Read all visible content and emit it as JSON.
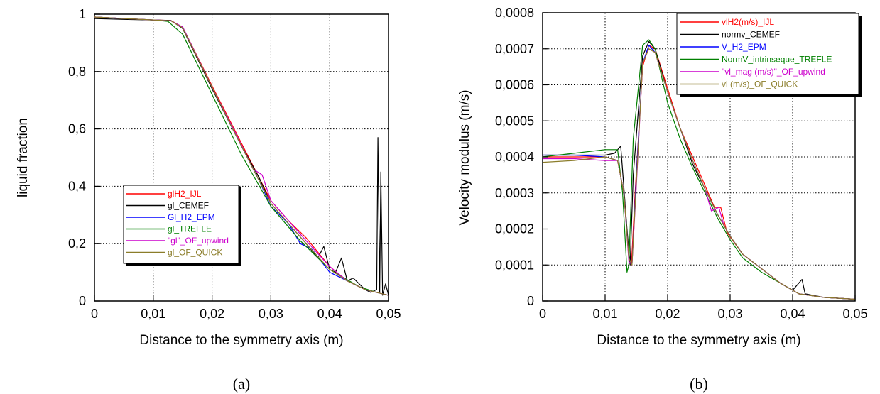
{
  "chart_data": [
    {
      "type": "line",
      "caption": "(a)",
      "xlabel": "Distance to the symmetry axis (m)",
      "ylabel": "liquid fraction",
      "xlim": [
        0,
        0.05
      ],
      "ylim": [
        0,
        1
      ],
      "x_ticks": [
        "0",
        "0,01",
        "0,02",
        "0,03",
        "0,04",
        "0,05"
      ],
      "y_ticks": [
        "0",
        "0,2",
        "0,4",
        "0,6",
        "0,8",
        "1"
      ],
      "grid": true,
      "legend_position": "center-left",
      "series": [
        {
          "name": "glH2_IJL",
          "color": "#ff0000",
          "x": [
            0,
            0.005,
            0.01,
            0.013,
            0.015,
            0.02,
            0.024,
            0.027,
            0.028,
            0.03,
            0.033,
            0.036,
            0.04,
            0.043,
            0.046,
            0.048,
            0.05
          ],
          "y": [
            0.99,
            0.985,
            0.98,
            0.978,
            0.955,
            0.75,
            0.59,
            0.47,
            0.43,
            0.35,
            0.28,
            0.22,
            0.12,
            0.07,
            0.04,
            0.03,
            0.02
          ]
        },
        {
          "name": "gl_CEMEF",
          "color": "#000000",
          "x": [
            0,
            0.005,
            0.01,
            0.013,
            0.015,
            0.02,
            0.024,
            0.028,
            0.03,
            0.033,
            0.036,
            0.038,
            0.039,
            0.04,
            0.041,
            0.042,
            0.043,
            0.044,
            0.046,
            0.047,
            0.048,
            0.0482,
            0.0485,
            0.0487,
            0.049,
            0.0495,
            0.05
          ],
          "y": [
            0.985,
            0.982,
            0.98,
            0.978,
            0.95,
            0.74,
            0.58,
            0.43,
            0.34,
            0.27,
            0.2,
            0.15,
            0.19,
            0.11,
            0.1,
            0.15,
            0.07,
            0.08,
            0.04,
            0.03,
            0.04,
            0.57,
            0.03,
            0.45,
            0.02,
            0.06,
            0.02
          ]
        },
        {
          "name": "Gl_H2_EPM",
          "color": "#0000ff",
          "x": [
            0,
            0.005,
            0.01,
            0.013,
            0.015,
            0.02,
            0.024,
            0.028,
            0.03,
            0.033,
            0.035,
            0.037,
            0.04,
            0.043,
            0.046,
            0.048,
            0.05
          ],
          "y": [
            0.99,
            0.985,
            0.98,
            0.977,
            0.955,
            0.745,
            0.58,
            0.42,
            0.33,
            0.27,
            0.2,
            0.18,
            0.1,
            0.07,
            0.04,
            0.03,
            0.02
          ]
        },
        {
          "name": "gl_TREFLE",
          "color": "#008000",
          "x": [
            0,
            0.005,
            0.01,
            0.0125,
            0.015,
            0.02,
            0.025,
            0.03,
            0.035,
            0.04,
            0.045,
            0.048,
            0.05
          ],
          "y": [
            0.99,
            0.985,
            0.98,
            0.975,
            0.93,
            0.72,
            0.51,
            0.33,
            0.21,
            0.11,
            0.05,
            0.03,
            0.02
          ]
        },
        {
          "name": "\"gl\"_OF_upwind",
          "color": "#cc00cc",
          "x": [
            0,
            0.005,
            0.01,
            0.013,
            0.015,
            0.02,
            0.024,
            0.027,
            0.0285,
            0.03,
            0.033,
            0.036,
            0.04,
            0.043,
            0.046,
            0.048,
            0.05
          ],
          "y": [
            0.99,
            0.985,
            0.98,
            0.977,
            0.955,
            0.745,
            0.585,
            0.46,
            0.44,
            0.35,
            0.28,
            0.21,
            0.12,
            0.07,
            0.04,
            0.03,
            0.02
          ]
        },
        {
          "name": "gl_OF_QUICK",
          "color": "#8b7d2a",
          "x": [
            0,
            0.005,
            0.01,
            0.013,
            0.015,
            0.02,
            0.024,
            0.028,
            0.03,
            0.033,
            0.036,
            0.04,
            0.043,
            0.046,
            0.048,
            0.05
          ],
          "y": [
            0.99,
            0.985,
            0.98,
            0.977,
            0.952,
            0.745,
            0.58,
            0.42,
            0.34,
            0.27,
            0.2,
            0.11,
            0.07,
            0.04,
            0.03,
            0.02
          ]
        }
      ]
    },
    {
      "type": "line",
      "caption": "(b)",
      "xlabel": "Distance to the symmetry axis (m)",
      "ylabel": "Velocity modulus (m/s)",
      "xlim": [
        0,
        0.05
      ],
      "ylim": [
        0,
        0.0008
      ],
      "x_ticks": [
        "0",
        "0,01",
        "0,02",
        "0,03",
        "0,04",
        "0,05"
      ],
      "y_ticks": [
        "0",
        "0,0001",
        "0,0002",
        "0,0003",
        "0,0004",
        "0,0005",
        "0,0006",
        "0,0007",
        "0,0008"
      ],
      "grid": true,
      "legend_position": "top-right",
      "series": [
        {
          "name": "vlH2(m/s)_IJL",
          "color": "#ff0000",
          "x": [
            0,
            0.005,
            0.01,
            0.012,
            0.013,
            0.0138,
            0.0142,
            0.0148,
            0.016,
            0.017,
            0.018,
            0.02,
            0.022,
            0.024,
            0.026,
            0.0275,
            0.0285,
            0.0295,
            0.032,
            0.035,
            0.038,
            0.041,
            0.045,
            0.05
          ],
          "y": [
            0.0004,
            0.0004,
            0.0004,
            0.00039,
            0.0003,
            0.00012,
            0.0001,
            0.0003,
            0.00065,
            0.00071,
            0.0007,
            0.00059,
            0.00048,
            0.0004,
            0.00032,
            0.00026,
            0.00026,
            0.00019,
            0.00013,
            9e-05,
            5e-05,
            2e-05,
            1e-05,
            5e-06
          ]
        },
        {
          "name": "normv_CEMEF",
          "color": "#000000",
          "x": [
            0,
            0.005,
            0.01,
            0.0115,
            0.0125,
            0.0135,
            0.014,
            0.0145,
            0.016,
            0.017,
            0.018,
            0.02,
            0.022,
            0.024,
            0.026,
            0.028,
            0.03,
            0.032,
            0.035,
            0.038,
            0.04,
            0.0415,
            0.042,
            0.045,
            0.05
          ],
          "y": [
            0.000405,
            0.000405,
            0.000405,
            0.00041,
            0.00043,
            0.0002,
            0.0001,
            0.00035,
            0.00068,
            0.00072,
            0.0007,
            0.00058,
            0.00048,
            0.00038,
            0.00031,
            0.00024,
            0.00018,
            0.00013,
            9e-05,
            5e-05,
            3e-05,
            6e-05,
            2e-05,
            1e-05,
            5e-06
          ]
        },
        {
          "name": "V_H2_EPM",
          "color": "#0000ff",
          "x": [
            0,
            0.005,
            0.01,
            0.012,
            0.013,
            0.0138,
            0.0143,
            0.015,
            0.016,
            0.017,
            0.018,
            0.02,
            0.022,
            0.024,
            0.026,
            0.028,
            0.03,
            0.032,
            0.035,
            0.038,
            0.041,
            0.045,
            0.05
          ],
          "y": [
            0.000405,
            0.000405,
            0.0004,
            0.00039,
            0.0003,
            0.00012,
            0.0001,
            0.00035,
            0.00066,
            0.00071,
            0.00069,
            0.00058,
            0.00048,
            0.00039,
            0.00031,
            0.00024,
            0.00018,
            0.00013,
            9e-05,
            5e-05,
            2e-05,
            1e-05,
            5e-06
          ]
        },
        {
          "name": "NormV_intrinseque_TREFLE",
          "color": "#008000",
          "x": [
            0,
            0.005,
            0.01,
            0.012,
            0.0128,
            0.0135,
            0.0138,
            0.0145,
            0.016,
            0.017,
            0.018,
            0.02,
            0.022,
            0.024,
            0.026,
            0.028,
            0.03,
            0.032,
            0.035,
            0.038,
            0.041,
            0.045,
            0.05
          ],
          "y": [
            0.0004,
            0.00041,
            0.00042,
            0.00042,
            0.0003,
            8e-05,
            0.0001,
            0.00045,
            0.00071,
            0.000725,
            0.0007,
            0.00055,
            0.00045,
            0.00037,
            0.0003,
            0.00023,
            0.00017,
            0.00012,
            8e-05,
            5e-05,
            2e-05,
            1e-05,
            5e-06
          ]
        },
        {
          "name": "\"vl_mag (m/s)\"_OF_upwind",
          "color": "#cc00cc",
          "x": [
            0,
            0.005,
            0.01,
            0.012,
            0.013,
            0.0138,
            0.0143,
            0.015,
            0.016,
            0.017,
            0.018,
            0.02,
            0.022,
            0.024,
            0.026,
            0.027,
            0.0282,
            0.029,
            0.03,
            0.032,
            0.035,
            0.038,
            0.041,
            0.045,
            0.05
          ],
          "y": [
            0.000395,
            0.000395,
            0.00039,
            0.00039,
            0.0003,
            0.00011,
            0.0001,
            0.00032,
            0.00066,
            0.0007,
            0.00069,
            0.00058,
            0.00048,
            0.00039,
            0.00031,
            0.00025,
            0.00026,
            0.00021,
            0.00018,
            0.00013,
            9e-05,
            5e-05,
            2e-05,
            1e-05,
            5e-06
          ]
        },
        {
          "name": "vl (m/s)_OF_QUICK",
          "color": "#8b7d2a",
          "x": [
            0,
            0.005,
            0.01,
            0.012,
            0.013,
            0.0138,
            0.0143,
            0.015,
            0.016,
            0.017,
            0.018,
            0.02,
            0.022,
            0.024,
            0.026,
            0.028,
            0.03,
            0.032,
            0.035,
            0.038,
            0.041,
            0.045,
            0.05
          ],
          "y": [
            0.000385,
            0.00039,
            0.0004,
            0.00039,
            0.0003,
            0.00012,
            0.0001,
            0.00033,
            0.00066,
            0.0007,
            0.00069,
            0.00058,
            0.00048,
            0.00039,
            0.00031,
            0.00024,
            0.00018,
            0.00013,
            9e-05,
            5e-05,
            2e-05,
            1e-05,
            5e-06
          ]
        }
      ]
    }
  ]
}
